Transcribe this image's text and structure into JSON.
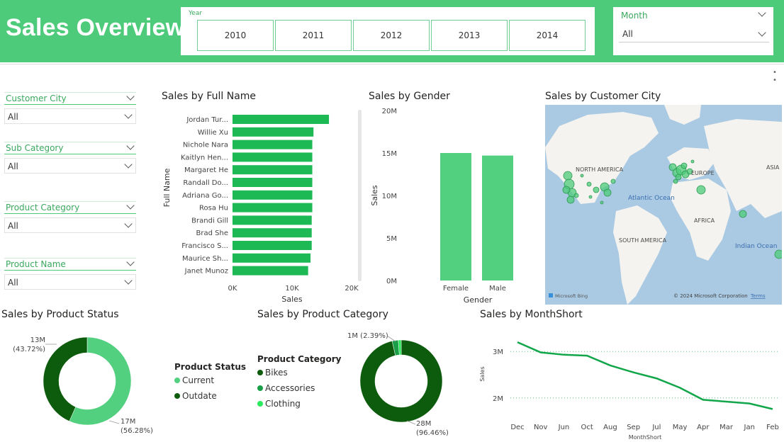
{
  "header": {
    "title": "Sales Overview",
    "year_slicer": {
      "label": "Year",
      "options": [
        "2010",
        "2011",
        "2012",
        "2013",
        "2014"
      ]
    },
    "month_slicer": {
      "label": "Month",
      "value": "All"
    }
  },
  "slicers": [
    {
      "label": "Customer City",
      "value": "All"
    },
    {
      "label": "Sub Category",
      "value": "All"
    },
    {
      "label": "Product Category",
      "value": "All"
    },
    {
      "label": "Product Name",
      "value": "All"
    }
  ],
  "colors": {
    "accent": "#4ecb7a",
    "bar": "#1db954",
    "dark_green": "#0d5c0d",
    "light_green": "#52d07f",
    "bright_green": "#2bea5d"
  },
  "chart_data": [
    {
      "type": "bar",
      "orientation": "horizontal",
      "title": "Sales by Full Name",
      "xlabel": "Sales",
      "ylabel": "Full Name",
      "categories": [
        "Jordan Tur...",
        "Willie Xu",
        "Nichole Nara",
        "Kaitlyn Hen...",
        "Margaret He",
        "Randall Do...",
        "Adriana Go...",
        "Rosa Hu",
        "Brandi Gill",
        "Brad She",
        "Francisco S...",
        "Maurice Sh...",
        "Janet Munoz"
      ],
      "values": [
        16200,
        13600,
        13400,
        13400,
        13400,
        13400,
        13400,
        13400,
        13300,
        13300,
        13300,
        13100,
        12700
      ],
      "xticks": [
        "0K",
        "10K",
        "20K"
      ],
      "xlim": [
        0,
        20000
      ]
    },
    {
      "type": "bar",
      "title": "Sales by Gender",
      "xlabel": "Gender",
      "ylabel": "Sales",
      "categories": [
        "Female",
        "Male"
      ],
      "values": [
        15000000,
        14700000
      ],
      "yticks": [
        "0M",
        "5M",
        "10M",
        "15M",
        "20M"
      ],
      "ylim": [
        0,
        20000000
      ]
    },
    {
      "type": "pie",
      "donut": true,
      "title": "Sales by Product Status",
      "legend_title": "Product Status",
      "slices": [
        {
          "name": "Current",
          "value": 17,
          "label": "17M",
          "pct": "(56.28%)",
          "color": "#52d07f"
        },
        {
          "name": "Outdate",
          "value": 13,
          "label": "13M",
          "pct": "(43.72%)",
          "color": "#0d5c0d"
        }
      ]
    },
    {
      "type": "pie",
      "donut": true,
      "title": "Sales by Product Category",
      "legend_title": "Product Category",
      "slices": [
        {
          "name": "Bikes",
          "value": 28,
          "label": "28M",
          "pct": "(96.46%)",
          "color": "#0d5c0d"
        },
        {
          "name": "Accessories",
          "value": 0.7,
          "label": "1M",
          "pct": "(2.39%)",
          "color": "#1a9e48"
        },
        {
          "name": "Clothing",
          "value": 0.33,
          "label": "",
          "pct": "",
          "color": "#2bea5d"
        }
      ]
    },
    {
      "type": "line",
      "title": "Sales by MonthShort",
      "xlabel": "MonthShort",
      "ylabel": "Sales",
      "categories": [
        "Dec",
        "Nov",
        "Jun",
        "Oct",
        "Aug",
        "Sep",
        "Jul",
        "May",
        "Apr",
        "Mar",
        "Jan",
        "Feb"
      ],
      "values": [
        3200000,
        2980000,
        2930000,
        2910000,
        2700000,
        2550000,
        2420000,
        2220000,
        1960000,
        1920000,
        1880000,
        1760000
      ],
      "yticks": [
        "2M",
        "3M"
      ],
      "ylim": [
        1600000,
        3400000
      ]
    }
  ],
  "map": {
    "title": "Sales by Customer City",
    "labels": [
      "NORTH AMERICA",
      "EUROPE",
      "ASIA",
      "Atlantic Ocean",
      "AFRICA",
      "SOUTH AMERICA",
      "Indian Ocean"
    ],
    "brand": "Microsoft Bing",
    "copyright": "© 2024 Microsoft Corporation",
    "terms": "Terms"
  }
}
